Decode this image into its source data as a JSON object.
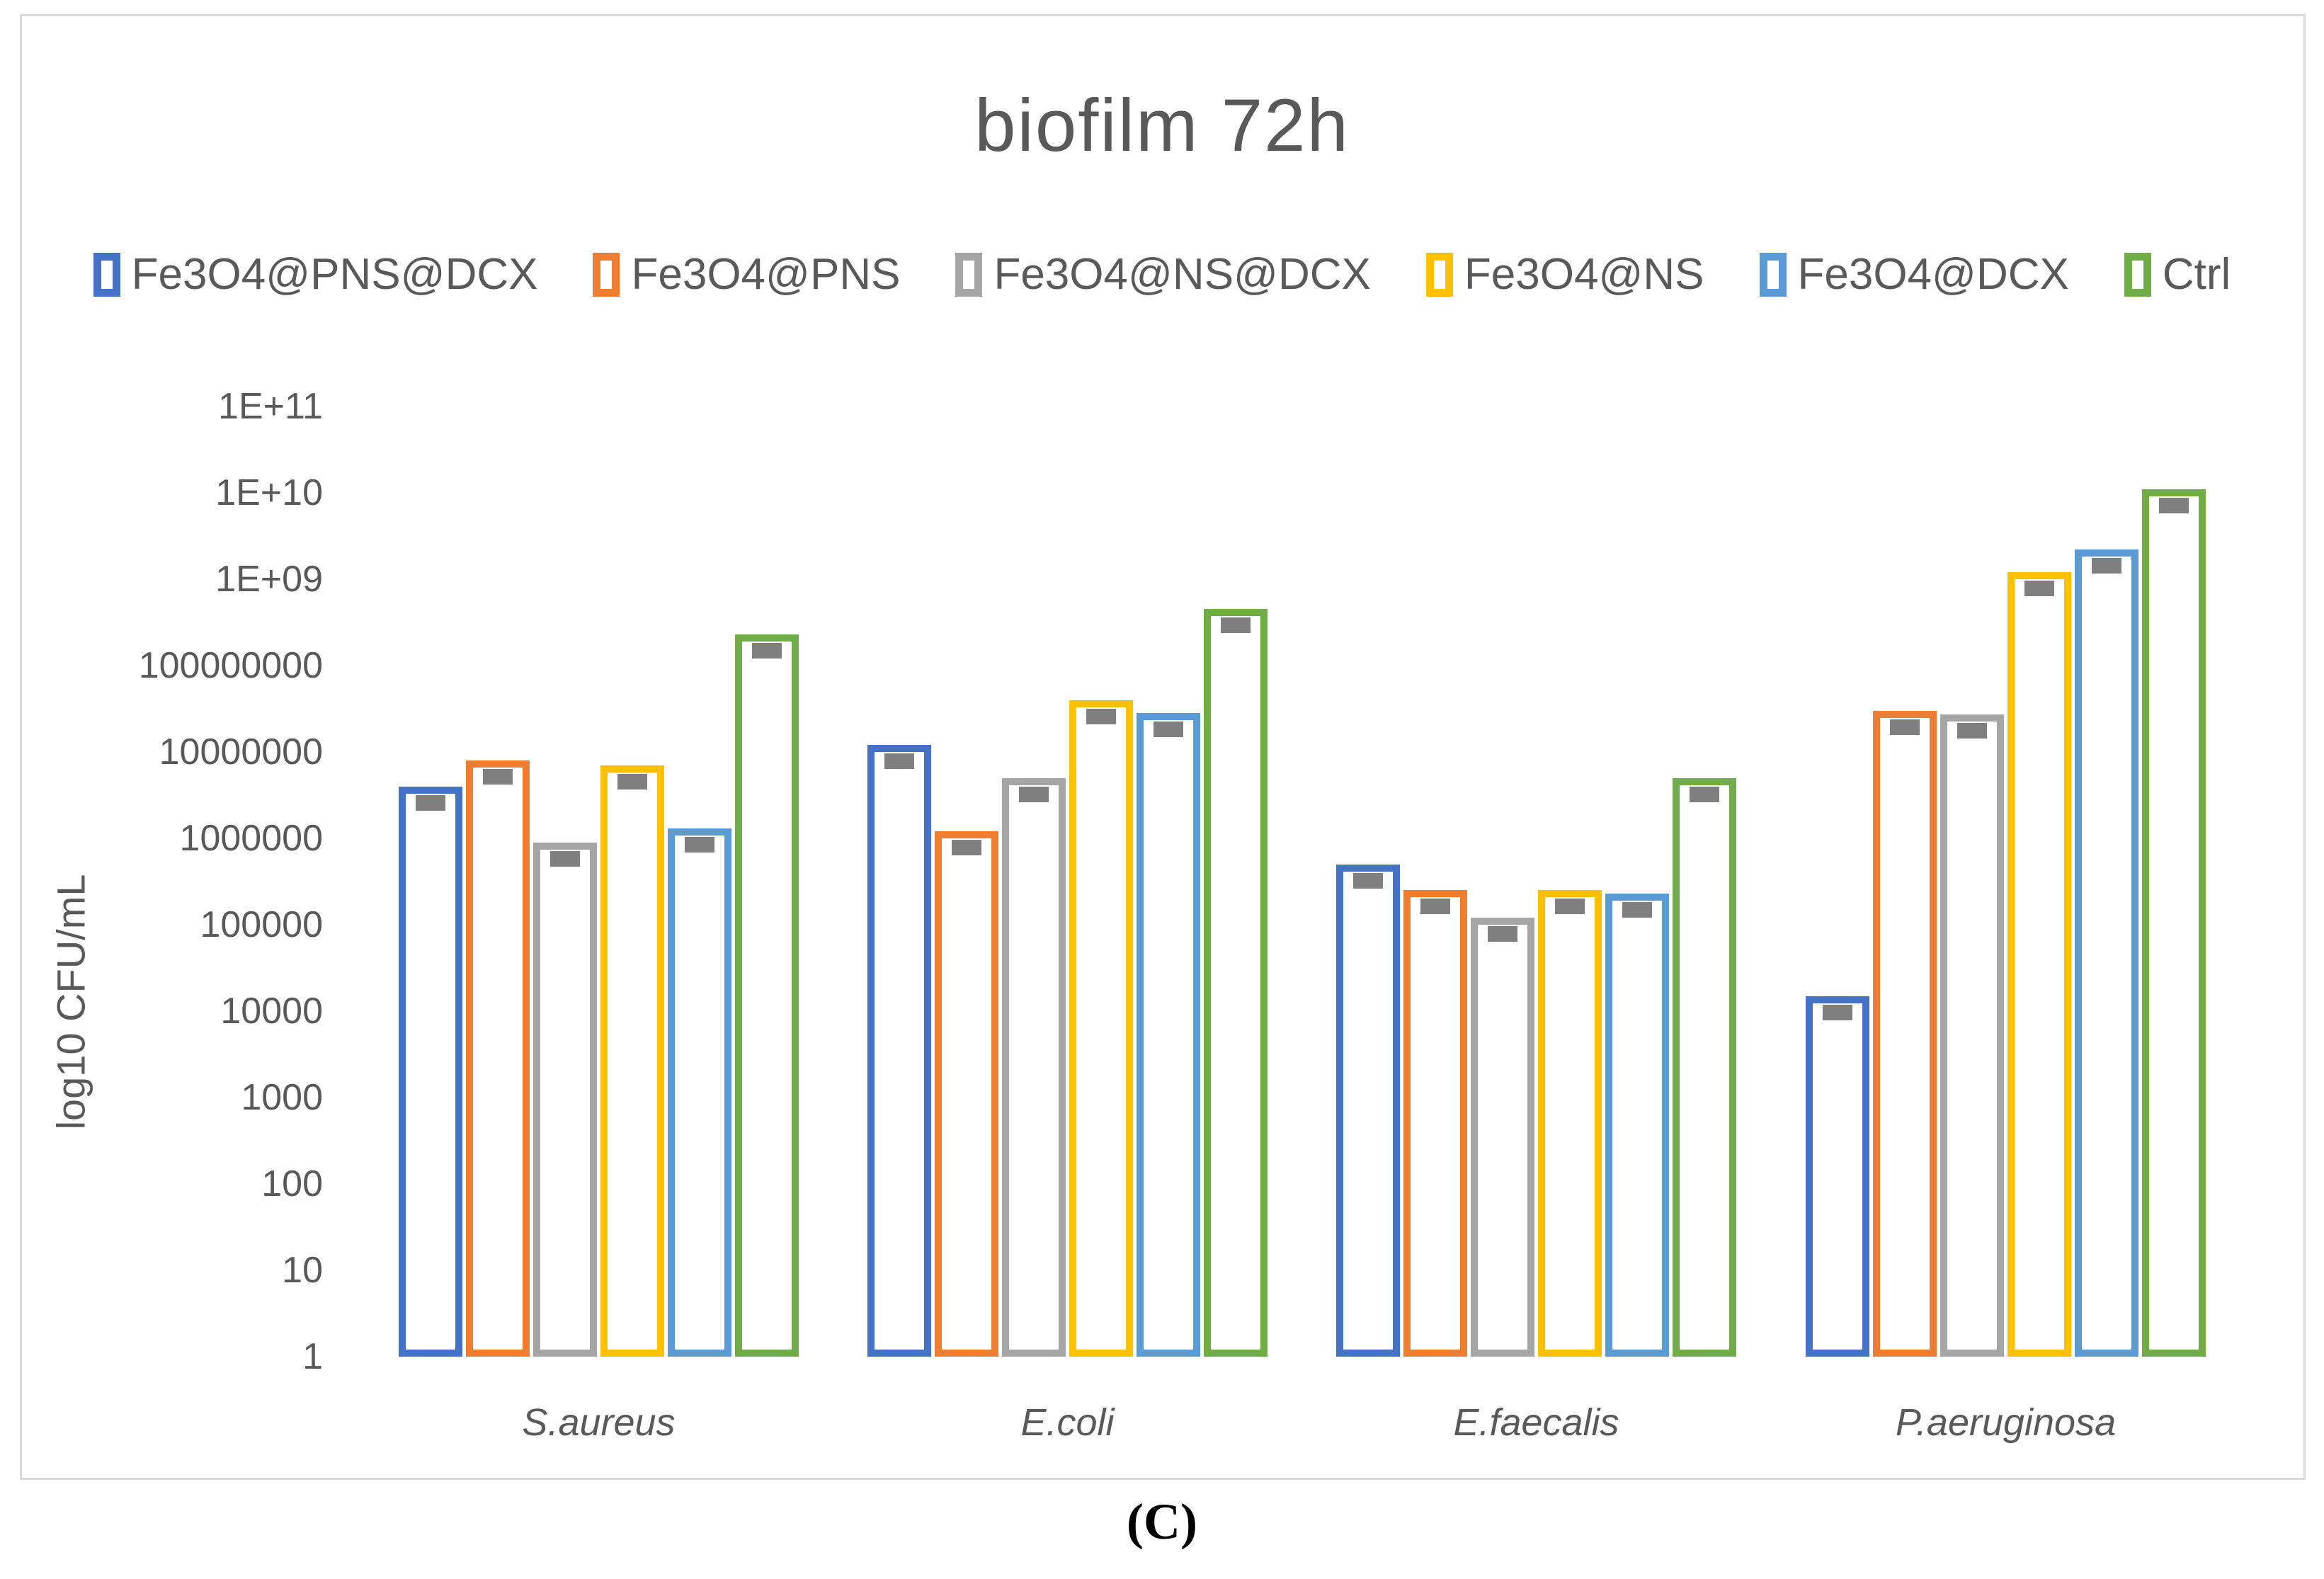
{
  "figure": {
    "caption": "(C)"
  },
  "colors": {
    "text": "#595959",
    "chart_border": "#D9D9D9",
    "error_cap": "#7F7F7F",
    "background": "#FFFFFF"
  },
  "chart_data": {
    "type": "bar",
    "title": "biofilm 72h",
    "ylabel": "log10 CFU/mL",
    "yscale": "log10",
    "ylim": [
      1,
      100000000000
    ],
    "gridlines": false,
    "legend_position": "top",
    "bar_style": "hollow-outline",
    "error_caps": true,
    "y_tick_labels": [
      "1E+11",
      "1E+10",
      "1E+09",
      "100000000",
      "10000000",
      "1000000",
      "100000",
      "10000",
      "1000",
      "100",
      "10",
      "1"
    ],
    "categories": [
      "S.aureus",
      "E.coli",
      "E.faecalis",
      "P.aeruginosa"
    ],
    "series": [
      {
        "name": "Fe3O4@PNS@DCX",
        "color": "#4472C4",
        "values": [
          4000000,
          12000000,
          500000,
          15000
        ]
      },
      {
        "name": "Fe3O4@PNS",
        "color": "#ED7D31",
        "values": [
          8000000,
          1200000,
          250000,
          30000000
        ]
      },
      {
        "name": "Fe3O4@NS@DCX",
        "color": "#A5A5A5",
        "values": [
          900000,
          5000000,
          120000,
          27000000
        ]
      },
      {
        "name": "Fe3O4@NS",
        "color": "#FFC000",
        "values": [
          7000000,
          40000000,
          250000,
          1200000000
        ]
      },
      {
        "name": "Fe3O4@DCX",
        "color": "#5B9BD5",
        "values": [
          1300000,
          28000000,
          230000,
          2200000000
        ]
      },
      {
        "name": "Ctrl",
        "color": "#70AD47",
        "values": [
          230000000,
          450000000,
          5000000,
          11000000000
        ]
      }
    ]
  }
}
